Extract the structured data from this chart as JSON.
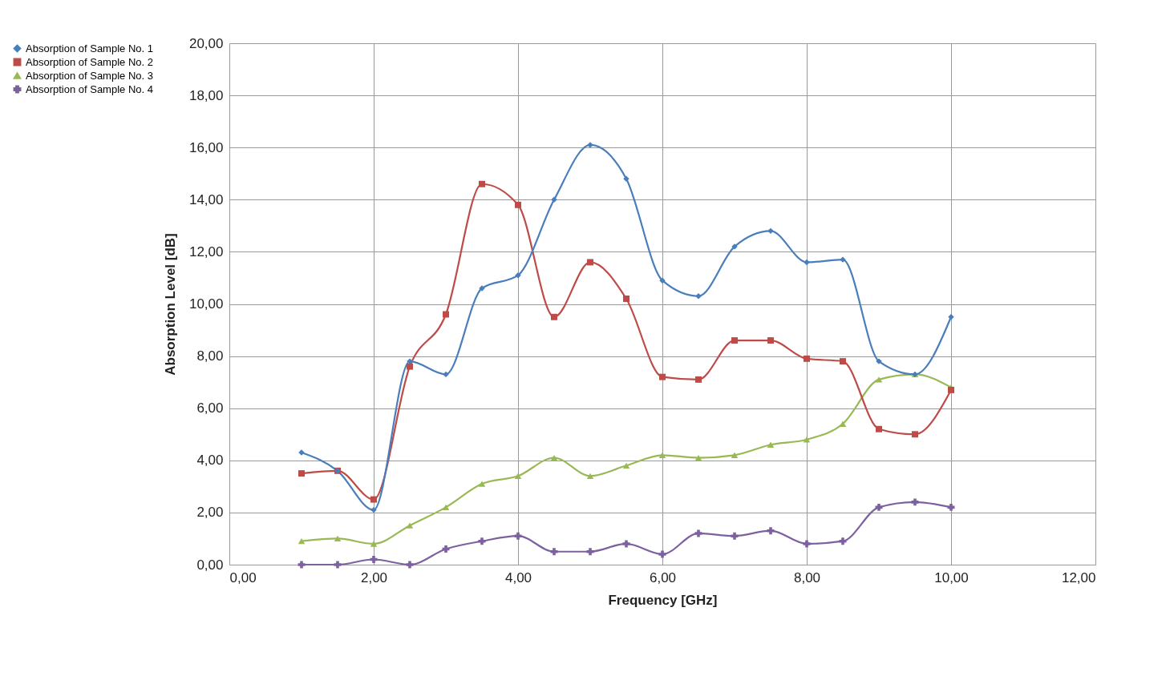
{
  "chart_data": {
    "type": "line",
    "xlabel": "Frequency  [GHz]",
    "ylabel": "Absorption Level  [dB]",
    "x": [
      1,
      1.5,
      2,
      2.5,
      3,
      3.5,
      4,
      4.5,
      5,
      5.5,
      6,
      6.5,
      7,
      7.5,
      8,
      8.5,
      9,
      9.5,
      10
    ],
    "series": [
      {
        "name": "Absorption of Sample No. 1",
        "color": "#4a7ebb",
        "marker": "diamond",
        "values": [
          4.3,
          3.6,
          2.1,
          7.8,
          7.3,
          10.6,
          11.1,
          14.0,
          16.1,
          14.8,
          10.9,
          10.3,
          12.2,
          12.8,
          11.6,
          11.7,
          7.8,
          7.3,
          9.5
        ]
      },
      {
        "name": "Absorption of Sample No. 2",
        "color": "#be4b48",
        "marker": "square",
        "values": [
          3.5,
          3.6,
          2.5,
          7.6,
          9.6,
          14.6,
          13.8,
          9.5,
          11.6,
          10.2,
          7.2,
          7.1,
          8.6,
          8.6,
          7.9,
          7.8,
          5.2,
          5.0,
          6.7
        ]
      },
      {
        "name": "Absorption of Sample No. 3",
        "color": "#98b954",
        "marker": "triangle",
        "values": [
          0.9,
          1.0,
          0.8,
          1.5,
          2.2,
          3.1,
          3.4,
          4.1,
          3.4,
          3.8,
          4.2,
          4.1,
          4.2,
          4.6,
          4.8,
          5.4,
          7.1,
          7.3,
          6.8
        ]
      },
      {
        "name": "Absorption of Sample No. 4",
        "color": "#7d60a0",
        "marker": "cross",
        "values": [
          0,
          0,
          0.2,
          0,
          0.6,
          0.9,
          1.1,
          0.5,
          0.5,
          0.8,
          0.4,
          1.2,
          1.1,
          1.3,
          0.8,
          0.9,
          2.2,
          2.4,
          2.2
        ]
      }
    ],
    "xlim": [
      0,
      12
    ],
    "xticks": [
      {
        "value": 0,
        "label": "0,00"
      },
      {
        "value": 2,
        "label": "2,00"
      },
      {
        "value": 4,
        "label": "4,00"
      },
      {
        "value": 6,
        "label": "6,00"
      },
      {
        "value": 8,
        "label": "8,00"
      },
      {
        "value": 10,
        "label": "10,00"
      },
      {
        "value": 12,
        "label": "12,00"
      }
    ],
    "ylim": [
      0,
      20
    ],
    "yticks": [
      {
        "value": 0,
        "label": "0,00"
      },
      {
        "value": 2,
        "label": "2,00"
      },
      {
        "value": 4,
        "label": "4,00"
      },
      {
        "value": 6,
        "label": "6,00"
      },
      {
        "value": 8,
        "label": "8,00"
      },
      {
        "value": 10,
        "label": "10,00"
      },
      {
        "value": 12,
        "label": "12,00"
      },
      {
        "value": 14,
        "label": "14,00"
      },
      {
        "value": 16,
        "label": "16,00"
      },
      {
        "value": 18,
        "label": "18,00"
      },
      {
        "value": 20,
        "label": "20,00"
      }
    ],
    "grid": true,
    "legend": "top left",
    "line_style": "solid"
  }
}
